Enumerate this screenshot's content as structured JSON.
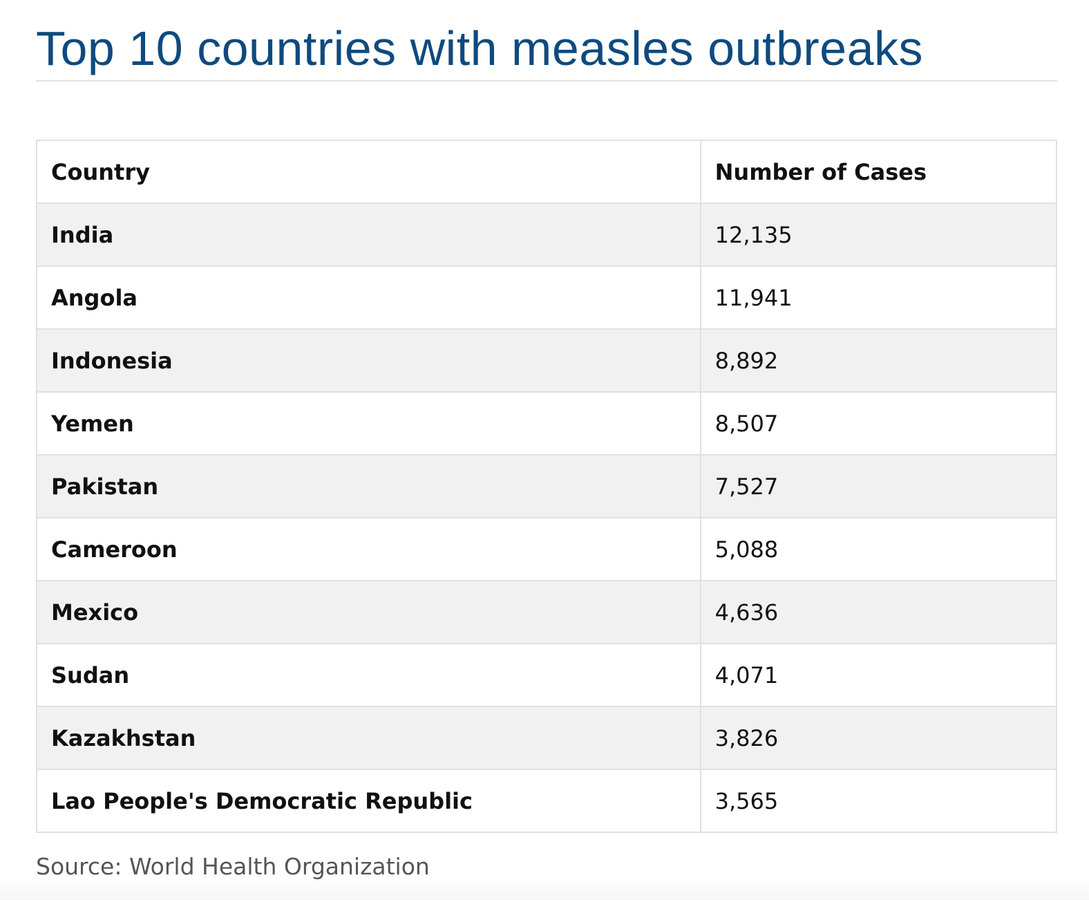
{
  "title": "Top 10 countries with measles outbreaks",
  "colors": {
    "title": "#0f4a7e",
    "row_alt": "#f1f1f1",
    "border": "#dde1e6",
    "source_text": "#555555"
  },
  "table": {
    "headers": [
      "Country",
      "Number of Cases"
    ],
    "rows": [
      {
        "country": "India",
        "cases": "12,135"
      },
      {
        "country": "Angola",
        "cases": "11,941"
      },
      {
        "country": "Indonesia",
        "cases": "8,892"
      },
      {
        "country": "Yemen",
        "cases": "8,507"
      },
      {
        "country": "Pakistan",
        "cases": "7,527"
      },
      {
        "country": "Cameroon",
        "cases": "5,088"
      },
      {
        "country": "Mexico",
        "cases": "4,636"
      },
      {
        "country": "Sudan",
        "cases": "4,071"
      },
      {
        "country": "Kazakhstan",
        "cases": "3,826"
      },
      {
        "country": "Lao People's Democratic Republic",
        "cases": "3,565"
      }
    ]
  },
  "source": "Source: World Health Organization"
}
